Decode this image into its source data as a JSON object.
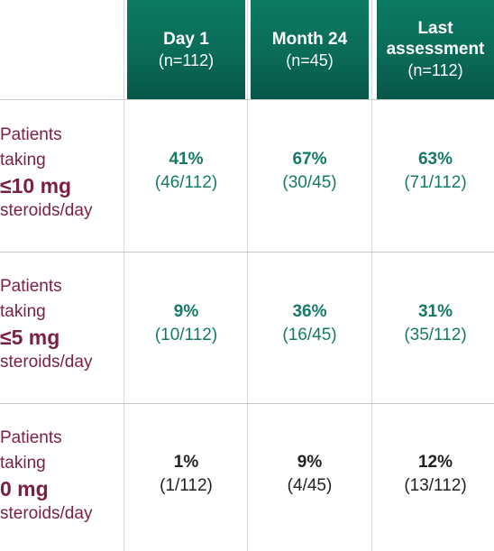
{
  "header": {
    "columns": [
      {
        "title": "Day 1",
        "n": "(n=112)"
      },
      {
        "title": "Month 24",
        "n": "(n=45)"
      },
      {
        "title_line1": "Last",
        "title_line2": "assessment",
        "n": "(n=112)"
      }
    ]
  },
  "rows": [
    {
      "label_line1": "Patients",
      "label_line2": "taking",
      "label_dose": "≤10 mg",
      "label_line4": "steroids/day",
      "cells": [
        {
          "pct": "41%",
          "count": "(46/112)"
        },
        {
          "pct": "67%",
          "count": "(30/45)"
        },
        {
          "pct": "63%",
          "count": "(71/112)"
        }
      ]
    },
    {
      "label_line1": "Patients",
      "label_line2": "taking",
      "label_dose": "≤5 mg",
      "label_line4": "steroids/day",
      "cells": [
        {
          "pct": "9%",
          "count": "(10/112)"
        },
        {
          "pct": "36%",
          "count": "(16/45)"
        },
        {
          "pct": "31%",
          "count": "(35/112)"
        }
      ]
    },
    {
      "label_line1": "Patients",
      "label_line2": "taking",
      "label_dose": "0 mg",
      "label_line4": "steroids/day",
      "cells": [
        {
          "pct": "1%",
          "count": "(1/112)"
        },
        {
          "pct": "9%",
          "count": "(4/45)"
        },
        {
          "pct": "12%",
          "count": "(13/112)"
        }
      ]
    }
  ],
  "colors": {
    "header_green": "#0a6b57",
    "value_green": "#147a68",
    "label_maroon": "#7a1f45",
    "value_black": "#222222"
  }
}
